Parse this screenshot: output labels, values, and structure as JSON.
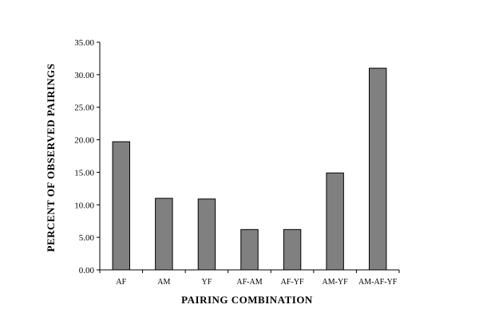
{
  "chart_data": {
    "type": "bar",
    "title": "",
    "xlabel": "PAIRING  COMBINATION",
    "ylabel": "PERCENT  OF  OBSERVED  PAIRINGS",
    "categories": [
      "AF",
      "AM",
      "YF",
      "AF-AM",
      "AF-YF",
      "AM-YF",
      "AM-AF-YF"
    ],
    "values": [
      19.7,
      11.0,
      10.9,
      6.2,
      6.2,
      14.9,
      31.0
    ],
    "ylim": [
      0,
      35
    ],
    "yticks": [
      "0.00",
      "5.00",
      "10.00",
      "15.00",
      "20.00",
      "25.00",
      "30.00",
      "35.00"
    ],
    "bar_color": "#808080",
    "bar_outline": "#000000",
    "grid": false,
    "legend": "none"
  }
}
